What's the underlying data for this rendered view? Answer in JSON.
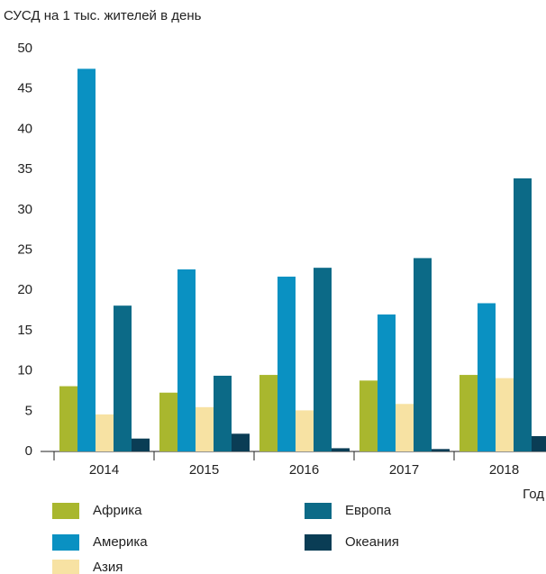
{
  "chart_data": {
    "type": "bar",
    "title": "СУСД на 1 тыс. жителей в день",
    "x_label": "Год",
    "categories": [
      "2014",
      "2015",
      "2016",
      "2017",
      "2018"
    ],
    "series": [
      {
        "name": "Африка",
        "color": "#a9b72e",
        "values": [
          8.1,
          7.3,
          9.5,
          8.8,
          9.5
        ]
      },
      {
        "name": "Америка",
        "color": "#0a91c2",
        "values": [
          47.5,
          22.6,
          21.7,
          17.0,
          18.4
        ]
      },
      {
        "name": "Азия",
        "color": "#f7e2a3",
        "values": [
          4.6,
          5.5,
          5.1,
          5.9,
          9.1
        ]
      },
      {
        "name": "Европа",
        "color": "#0c6a87",
        "values": [
          18.1,
          9.4,
          22.8,
          24.0,
          33.9
        ]
      },
      {
        "name": "Океания",
        "color": "#0a3d55",
        "values": [
          1.6,
          2.2,
          0.4,
          0.3,
          1.9
        ]
      }
    ],
    "ylim": [
      0,
      50
    ],
    "yticks": [
      0,
      5,
      10,
      15,
      20,
      25,
      30,
      35,
      40,
      45,
      50
    ],
    "grid": false
  }
}
